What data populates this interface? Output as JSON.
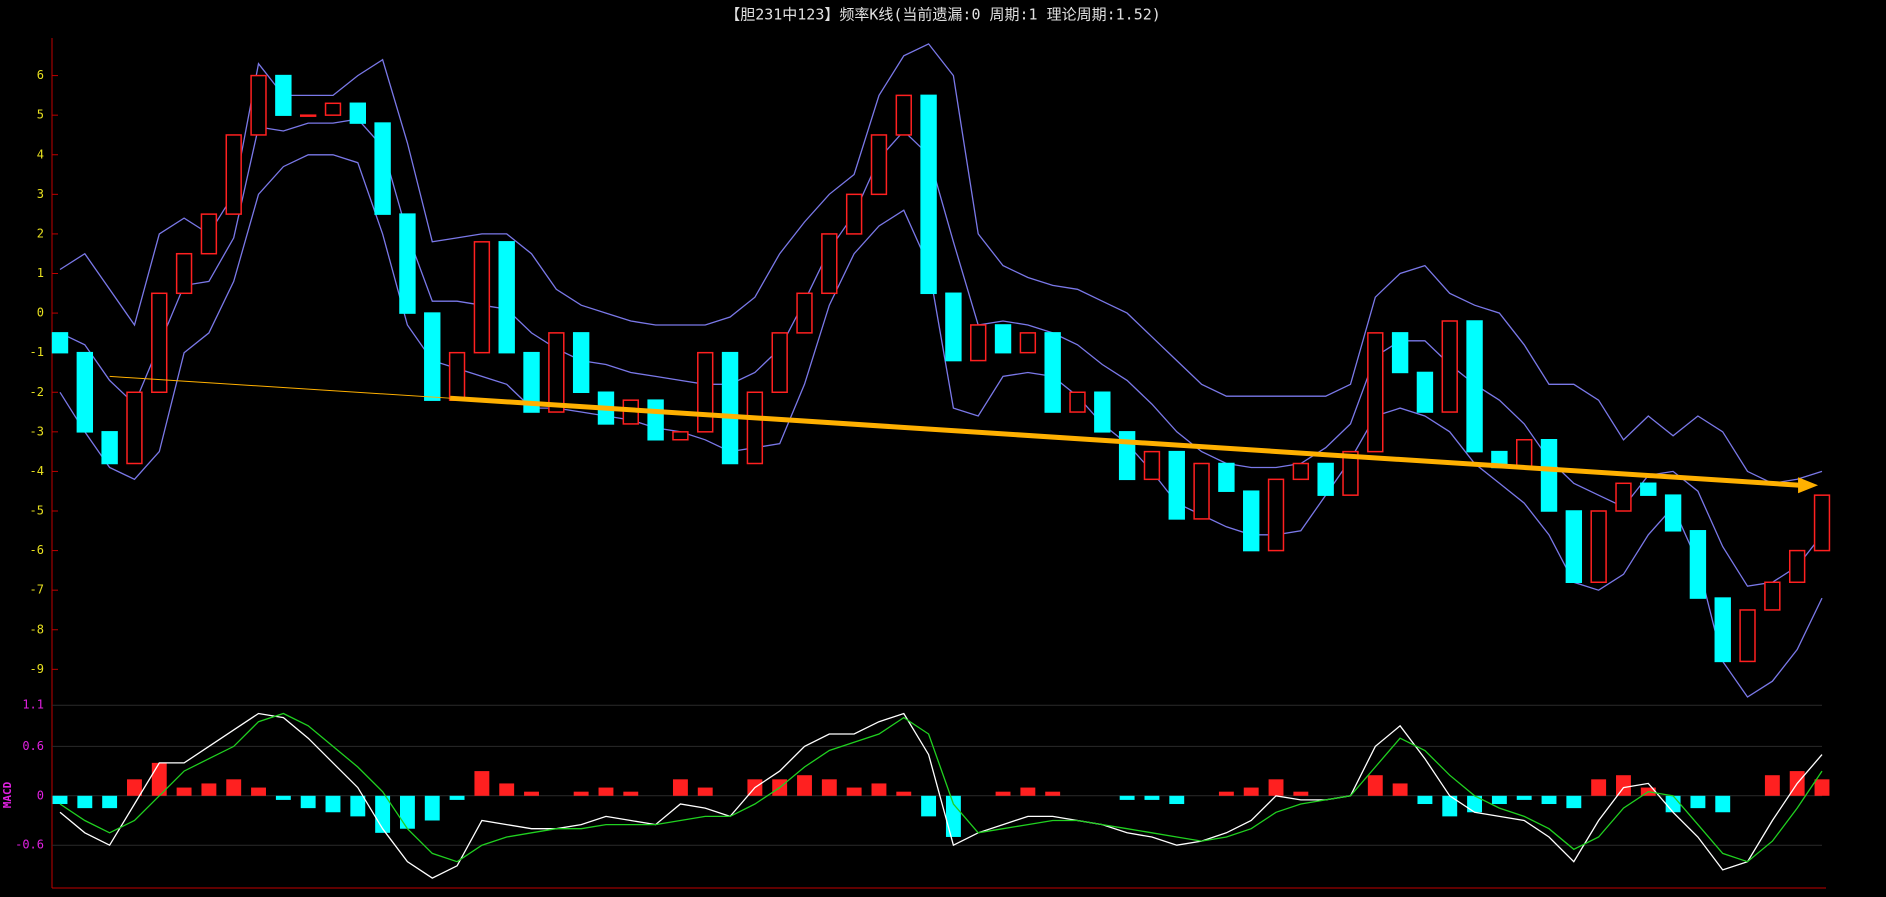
{
  "chart_data": [
    {
      "type": "candlestick",
      "title": "【胆231中123】频率K线(当前遗漏:0 周期:1 理论周期:1.52)",
      "up_color": "#ff2020",
      "down_color": "#00ffff",
      "open": [
        -0.5,
        -1.0,
        -3.0,
        -3.8,
        -2.0,
        0.5,
        1.5,
        2.5,
        4.5,
        6.0,
        5.0,
        5.0,
        5.3,
        4.8,
        2.5,
        0.0,
        -2.2,
        -1.0,
        1.8,
        -1.0,
        -2.5,
        -0.5,
        -2.0,
        -2.8,
        -2.2,
        -3.2,
        -3.0,
        -1.0,
        -3.8,
        -2.0,
        -0.5,
        0.5,
        2.0,
        3.0,
        4.5,
        5.5,
        0.5,
        -1.2,
        -0.3,
        -1.0,
        -0.5,
        -2.5,
        -2.0,
        -3.0,
        -4.2,
        -3.5,
        -5.2,
        -3.8,
        -4.5,
        -6.0,
        -4.2,
        -3.8,
        -4.6,
        -3.5,
        -0.5,
        -1.5,
        -2.5,
        -0.2,
        -3.5,
        -3.9,
        -3.2,
        -5.0,
        -6.8,
        -5.0,
        -4.3,
        -4.6,
        -5.5,
        -7.2,
        -8.8,
        -7.5,
        -6.8,
        -6.0
      ],
      "close": [
        -1.0,
        -3.0,
        -3.8,
        -2.0,
        0.5,
        1.5,
        2.5,
        4.5,
        6.0,
        5.0,
        5.0,
        5.3,
        4.8,
        2.5,
        0.0,
        -2.2,
        -1.0,
        1.8,
        -1.0,
        -2.5,
        -0.5,
        -2.0,
        -2.8,
        -2.2,
        -3.2,
        -3.0,
        -1.0,
        -3.8,
        -2.0,
        -0.5,
        0.5,
        2.0,
        3.0,
        4.5,
        5.5,
        0.5,
        -1.2,
        -0.3,
        -1.0,
        -0.5,
        -2.5,
        -2.0,
        -3.0,
        -4.2,
        -3.5,
        -5.2,
        -3.8,
        -4.5,
        -6.0,
        -4.2,
        -3.8,
        -4.6,
        -3.5,
        -0.5,
        -1.5,
        -2.5,
        -0.2,
        -3.5,
        -3.9,
        -3.2,
        -5.0,
        -6.8,
        -5.0,
        -4.3,
        -4.6,
        -5.5,
        -7.2,
        -8.8,
        -7.5,
        -6.8,
        -6.0,
        -4.6
      ],
      "series": [
        {
          "color": "#7a78e8",
          "values": [
            1.1,
            1.5,
            0.6,
            -0.3,
            2.0,
            2.4,
            2.0,
            3.0,
            6.3,
            5.5,
            5.5,
            5.5,
            6.0,
            6.4,
            4.3,
            1.8,
            1.9,
            2.0,
            2.0,
            1.5,
            0.6,
            0.2,
            0.0,
            -0.2,
            -0.3,
            -0.3,
            -0.3,
            -0.1,
            0.4,
            1.5,
            2.3,
            3.0,
            3.5,
            5.5,
            6.5,
            6.8,
            6.0,
            2.0,
            1.2,
            0.9,
            0.7,
            0.6,
            0.3,
            0.0,
            -0.6,
            -1.2,
            -1.8,
            -2.1,
            -2.1,
            -2.1,
            -2.1,
            -2.1,
            -1.8,
            0.4,
            1.0,
            1.2,
            0.5,
            0.2,
            0.0,
            -0.8,
            -1.8,
            -1.8,
            -2.2,
            -3.2,
            -2.6,
            -3.1,
            -2.6,
            -3.0,
            -4.0,
            -4.3,
            -4.2,
            -4.0
          ]
        },
        {
          "color": "#7a78e8",
          "values": [
            -0.5,
            -0.8,
            -1.7,
            -2.3,
            -0.8,
            0.7,
            0.8,
            1.9,
            4.7,
            4.6,
            4.8,
            4.8,
            4.9,
            4.2,
            2.0,
            0.3,
            0.3,
            0.2,
            0.1,
            -0.5,
            -0.9,
            -1.2,
            -1.3,
            -1.5,
            -1.6,
            -1.7,
            -1.8,
            -1.8,
            -1.5,
            -0.9,
            0.3,
            1.6,
            2.5,
            3.9,
            4.6,
            4.0,
            1.8,
            -0.3,
            -0.2,
            -0.3,
            -0.5,
            -0.8,
            -1.3,
            -1.7,
            -2.3,
            -3.0,
            -3.5,
            -3.8,
            -3.9,
            -3.9,
            -3.8,
            -3.4,
            -2.8,
            -1.1,
            -0.7,
            -0.7,
            -1.3,
            -1.8,
            -2.2,
            -2.8,
            -3.7,
            -4.3,
            -4.6,
            -4.9,
            -4.1,
            -4.0,
            -4.5,
            -5.9,
            -6.9,
            -6.8,
            -6.4,
            -5.6
          ]
        },
        {
          "color": "#7a78e8",
          "values": [
            -2.0,
            -3.0,
            -3.9,
            -4.2,
            -3.5,
            -1.0,
            -0.5,
            0.8,
            3.0,
            3.7,
            4.0,
            4.0,
            3.8,
            2.0,
            -0.3,
            -1.2,
            -1.4,
            -1.6,
            -1.8,
            -2.4,
            -2.4,
            -2.5,
            -2.6,
            -2.7,
            -2.9,
            -3.0,
            -3.2,
            -3.5,
            -3.4,
            -3.3,
            -1.8,
            0.2,
            1.5,
            2.2,
            2.6,
            1.2,
            -2.4,
            -2.6,
            -1.6,
            -1.5,
            -1.6,
            -2.1,
            -2.8,
            -3.3,
            -4.0,
            -4.8,
            -5.1,
            -5.4,
            -5.6,
            -5.6,
            -5.5,
            -4.6,
            -3.7,
            -2.6,
            -2.4,
            -2.6,
            -3.0,
            -3.8,
            -4.3,
            -4.8,
            -5.6,
            -6.8,
            -7.0,
            -6.6,
            -5.6,
            -4.9,
            -6.3,
            -8.8,
            -9.7,
            -9.3,
            -8.5,
            -7.2
          ]
        }
      ],
      "trendline": {
        "color": "#ffb000",
        "x": [
          2,
          70.6
        ],
        "y": [
          -1.6,
          -4.35
        ]
      },
      "ylim": [
        -9.8,
        7.0
      ],
      "yticks": [
        6,
        5,
        4,
        3,
        2,
        1,
        0,
        -1,
        -2,
        -3,
        -4,
        -5,
        -6,
        -7,
        -8,
        -9
      ],
      "tick_color": "#e8e020"
    },
    {
      "type": "macd",
      "label": "MACD",
      "up_color": "#ff2020",
      "down_color": "#00ffff",
      "histogram": [
        -0.1,
        -0.15,
        -0.15,
        0.2,
        0.4,
        0.1,
        0.15,
        0.2,
        0.1,
        -0.05,
        -0.15,
        -0.2,
        -0.25,
        -0.45,
        -0.4,
        -0.3,
        -0.05,
        0.3,
        0.15,
        0.05,
        0.0,
        0.05,
        0.1,
        0.05,
        0.0,
        0.2,
        0.1,
        0.0,
        0.2,
        0.2,
        0.25,
        0.2,
        0.1,
        0.15,
        0.05,
        -0.25,
        -0.5,
        0.0,
        0.05,
        0.1,
        0.05,
        0.0,
        0.0,
        -0.05,
        -0.05,
        -0.1,
        0.0,
        0.05,
        0.1,
        0.2,
        0.05,
        0.0,
        0.0,
        0.25,
        0.15,
        -0.1,
        -0.25,
        -0.2,
        -0.1,
        -0.05,
        -0.1,
        -0.15,
        0.2,
        0.25,
        0.1,
        -0.2,
        -0.15,
        -0.2,
        0.0,
        0.25,
        0.3,
        0.2
      ],
      "series": [
        {
          "color": "#ffffff",
          "values": [
            -0.2,
            -0.45,
            -0.6,
            -0.1,
            0.4,
            0.4,
            0.6,
            0.8,
            1.0,
            0.95,
            0.7,
            0.4,
            0.1,
            -0.4,
            -0.8,
            -1.0,
            -0.85,
            -0.3,
            -0.35,
            -0.4,
            -0.4,
            -0.35,
            -0.25,
            -0.3,
            -0.35,
            -0.1,
            -0.15,
            -0.25,
            0.1,
            0.3,
            0.6,
            0.75,
            0.75,
            0.9,
            1.0,
            0.5,
            -0.6,
            -0.45,
            -0.35,
            -0.25,
            -0.25,
            -0.3,
            -0.35,
            -0.45,
            -0.5,
            -0.6,
            -0.55,
            -0.45,
            -0.3,
            0.0,
            -0.05,
            -0.05,
            0.0,
            0.6,
            0.85,
            0.45,
            0.0,
            -0.2,
            -0.25,
            -0.3,
            -0.5,
            -0.8,
            -0.3,
            0.1,
            0.15,
            -0.2,
            -0.5,
            -0.9,
            -0.8,
            -0.3,
            0.15,
            0.5
          ]
        },
        {
          "color": "#20d020",
          "values": [
            -0.1,
            -0.3,
            -0.45,
            -0.3,
            0.0,
            0.3,
            0.45,
            0.6,
            0.9,
            1.0,
            0.85,
            0.6,
            0.35,
            0.05,
            -0.4,
            -0.7,
            -0.8,
            -0.6,
            -0.5,
            -0.45,
            -0.4,
            -0.4,
            -0.35,
            -0.35,
            -0.35,
            -0.3,
            -0.25,
            -0.25,
            -0.1,
            0.1,
            0.35,
            0.55,
            0.65,
            0.75,
            0.95,
            0.75,
            -0.1,
            -0.45,
            -0.4,
            -0.35,
            -0.3,
            -0.3,
            -0.35,
            -0.4,
            -0.45,
            -0.5,
            -0.55,
            -0.5,
            -0.4,
            -0.2,
            -0.1,
            -0.05,
            0.0,
            0.35,
            0.7,
            0.55,
            0.25,
            0.0,
            -0.15,
            -0.25,
            -0.4,
            -0.65,
            -0.5,
            -0.15,
            0.05,
            0.0,
            -0.35,
            -0.7,
            -0.8,
            -0.55,
            -0.15,
            0.3
          ]
        }
      ],
      "ylim": [
        -1.12,
        1.2
      ],
      "yticks": [
        1.1,
        0.6,
        0,
        -0.6
      ],
      "grid": true,
      "tick_color": "#e020e0"
    }
  ]
}
